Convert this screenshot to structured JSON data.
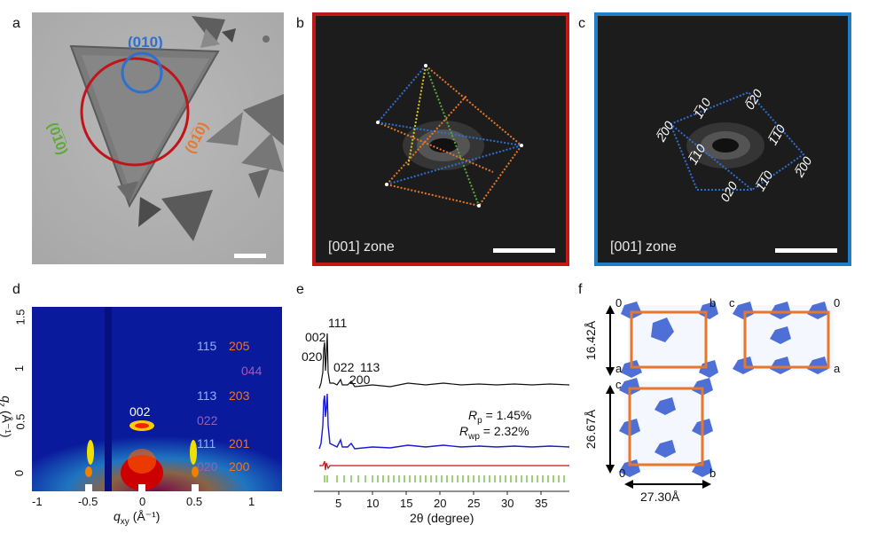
{
  "figure": {
    "panel_labels": [
      "a",
      "b",
      "c",
      "d",
      "e",
      "f"
    ],
    "a": {
      "indices": {
        "top": "(010)",
        "left": "(0̅1̅0)",
        "right": "(01̅0)"
      },
      "colors": {
        "blue": "#2f6fd0",
        "green": "#5fa83a",
        "orange": "#e8772a",
        "red": "#c0141a"
      }
    },
    "b": {
      "zone": "[001] zone",
      "border_color": "#c01818"
    },
    "c": {
      "zone": "[001] zone",
      "border_color": "#1f7fc6",
      "spots": [
        "2̅00",
        "1̅10",
        "0̅20",
        "1̅1̅0",
        "02̅0",
        "1̅10",
        "2̅00",
        "1̅1̅0",
        "020",
        "1̅10"
      ]
    },
    "d": {
      "xlabel": "q",
      "xlabel_sub": "xy",
      "xlabel_unit": "(Å⁻¹)",
      "ylabel": "q",
      "ylabel_sub": "z",
      "ylabel_unit": "(Å⁻¹)",
      "xticks": [
        "-1",
        "-0.5",
        "0",
        "0.5",
        "1"
      ],
      "yticks": [
        "0",
        "0.5",
        "1",
        "1.5"
      ],
      "peak_002": "002",
      "left_col": [
        "115",
        "113",
        "111",
        "020"
      ],
      "mid_col": [
        "022"
      ],
      "right_col": [
        "205",
        "044",
        "203",
        "201",
        "200"
      ]
    },
    "e": {
      "xlabel": "2θ (degree)",
      "xticks": [
        "5",
        "10",
        "15",
        "20",
        "25",
        "30",
        "35"
      ],
      "peaks": [
        "111",
        "002",
        "020",
        "022",
        "113",
        "200"
      ],
      "rp": "R",
      "rp_sub": "p",
      "rp_val": " = 1.45%",
      "rwp": "R",
      "rwp_sub": "wp",
      "rwp_val": " = 2.32%"
    },
    "f": {
      "top_left": {
        "o": "0",
        "b": "b",
        "a": "a",
        "dim": "16.42Å"
      },
      "top_right": {
        "c": "c",
        "o": "0",
        "a": "a"
      },
      "bottom": {
        "c": "c",
        "o": "0",
        "b": "b",
        "dim_v": "26.67Å",
        "dim_h": "27.30Å"
      }
    }
  }
}
